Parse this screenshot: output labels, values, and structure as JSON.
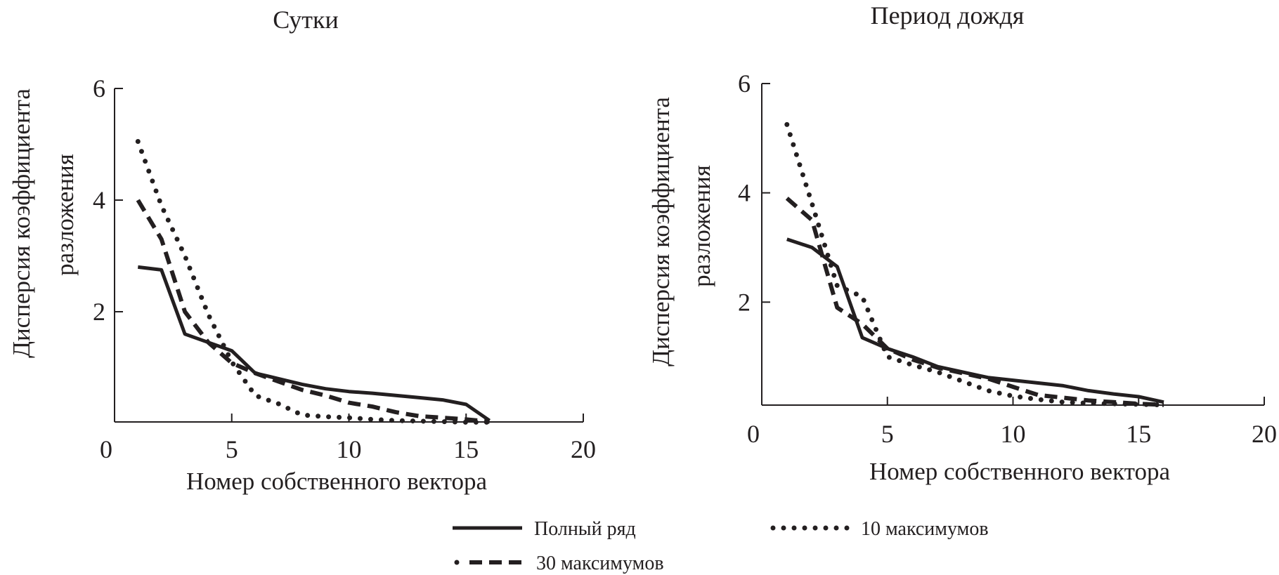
{
  "chart_data": [
    {
      "type": "line",
      "title": "Сутки",
      "xlabel": "Номер собственного вектора",
      "ylabel": [
        "Дисперсия коэффициента",
        "разложения"
      ],
      "xlim": [
        0,
        20
      ],
      "ylim": [
        0,
        6
      ],
      "xticks": [
        "0",
        "5",
        "10",
        "15",
        "20"
      ],
      "yticks": [
        "2",
        "4",
        "6"
      ],
      "grid": false,
      "x": [
        1,
        2,
        3,
        4,
        5,
        6,
        7,
        8,
        9,
        10,
        11,
        12,
        13,
        14,
        15,
        16
      ],
      "series": [
        {
          "name": "Полный ряд",
          "style": "solid",
          "values": [
            2.8,
            2.75,
            1.6,
            1.45,
            1.3,
            0.9,
            0.8,
            0.7,
            0.62,
            0.57,
            0.54,
            0.5,
            0.46,
            0.42,
            0.34,
            0.05
          ]
        },
        {
          "name": "30 максимумов",
          "style": "dashed",
          "values": [
            4.0,
            3.3,
            2.0,
            1.45,
            1.08,
            0.9,
            0.75,
            0.6,
            0.5,
            0.37,
            0.3,
            0.2,
            0.13,
            0.1,
            0.07,
            0.03
          ]
        },
        {
          "name": "10 максимумов",
          "style": "dotted",
          "values": [
            5.05,
            3.9,
            3.0,
            1.95,
            1.1,
            0.5,
            0.35,
            0.15,
            0.12,
            0.1,
            0.07,
            0.05,
            0.04,
            0.03,
            0.02,
            0.02
          ]
        }
      ]
    },
    {
      "type": "line",
      "title": "Период дождя",
      "xlabel": "Номер собственного вектора",
      "ylabel": [
        "Дисперсия коэффициента",
        "разложения"
      ],
      "xlim": [
        0,
        20
      ],
      "ylim": [
        0.1,
        6
      ],
      "xticks": [
        "0",
        "5",
        "10",
        "15",
        "20"
      ],
      "yticks": [
        "2",
        "4",
        "6"
      ],
      "grid": false,
      "x": [
        1,
        2,
        3,
        4,
        5,
        6,
        7,
        8,
        9,
        10,
        11,
        12,
        13,
        14,
        15,
        16
      ],
      "series": [
        {
          "name": "Полный ряд",
          "style": "solid",
          "values": [
            3.15,
            3.0,
            2.65,
            1.35,
            1.15,
            1.0,
            0.82,
            0.72,
            0.62,
            0.57,
            0.52,
            0.47,
            0.38,
            0.32,
            0.27,
            0.17
          ]
        },
        {
          "name": "30 максимумов",
          "style": "dashed",
          "values": [
            3.9,
            3.5,
            1.9,
            1.6,
            1.15,
            0.95,
            0.8,
            0.7,
            0.6,
            0.45,
            0.3,
            0.25,
            0.2,
            0.17,
            0.14,
            0.12
          ]
        },
        {
          "name": "10 максимумов",
          "style": "dotted",
          "values": [
            5.25,
            3.8,
            2.3,
            2.1,
            1.0,
            0.85,
            0.72,
            0.55,
            0.38,
            0.28,
            0.22,
            0.17,
            0.15,
            0.14,
            0.13,
            0.12
          ]
        }
      ]
    }
  ],
  "legend": {
    "placement": "bottom",
    "items": [
      {
        "label": "Полный ряд",
        "style": "solid"
      },
      {
        "label": "10 максимумов",
        "style": "dotted"
      },
      {
        "label": "30 максимумов",
        "style": "dashed"
      }
    ]
  },
  "colors": {
    "ink": "#231f20",
    "background": "#ffffff"
  }
}
